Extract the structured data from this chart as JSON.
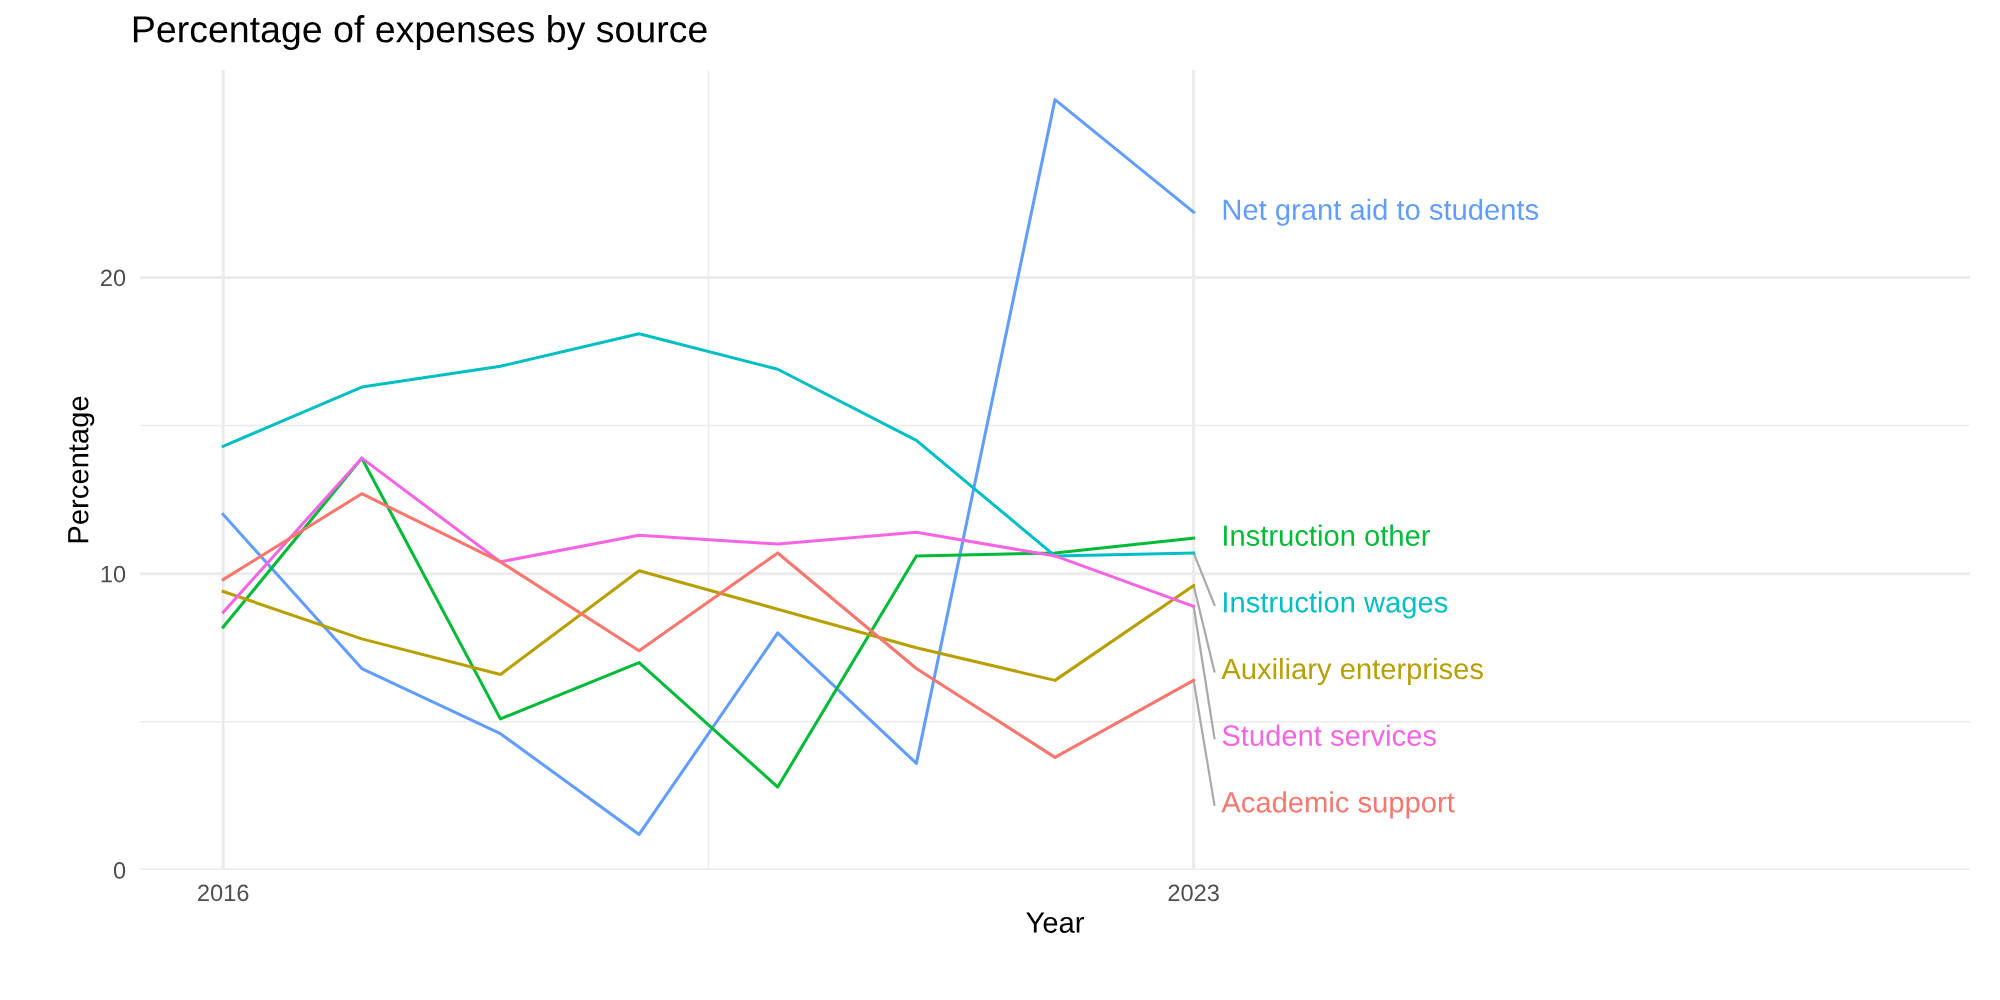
{
  "chart_data": {
    "type": "line",
    "title": "Percentage of expenses by source",
    "xlabel": "Year",
    "ylabel": "Percentage",
    "x": [
      2016,
      2017,
      2018,
      2019,
      2020,
      2021,
      2022,
      2023
    ],
    "series": [
      {
        "name": "Net grant aid to students",
        "color": "#619cff",
        "values": [
          12.0,
          6.8,
          4.6,
          1.2,
          8.0,
          3.6,
          26.0,
          22.2
        ]
      },
      {
        "name": "Instruction other",
        "color": "#00ba38",
        "values": [
          8.2,
          13.9,
          5.1,
          7.0,
          2.8,
          10.6,
          10.7,
          11.2
        ]
      },
      {
        "name": "Instruction wages",
        "color": "#00bfc4",
        "values": [
          14.3,
          16.3,
          17.0,
          18.1,
          16.9,
          14.5,
          10.6,
          10.7
        ]
      },
      {
        "name": "Auxiliary enterprises",
        "color": "#b79f00",
        "values": [
          9.4,
          7.8,
          6.6,
          10.1,
          8.8,
          7.5,
          6.4,
          9.6
        ]
      },
      {
        "name": "Student services",
        "color": "#f564e3",
        "values": [
          8.7,
          13.9,
          10.4,
          11.3,
          11.0,
          11.4,
          10.6,
          8.9
        ]
      },
      {
        "name": "Academic support",
        "color": "#f8766d",
        "values": [
          9.8,
          12.7,
          10.4,
          7.4,
          10.7,
          6.8,
          3.8,
          6.4
        ]
      }
    ],
    "xlim": [
      2015.4,
      2028.6
    ],
    "xticks": [
      2016,
      2023
    ],
    "ylim": [
      0,
      27.0
    ],
    "yticks": [
      0,
      10,
      20
    ],
    "grid": true,
    "legend": false,
    "marker": "none",
    "line_style": "solid"
  }
}
